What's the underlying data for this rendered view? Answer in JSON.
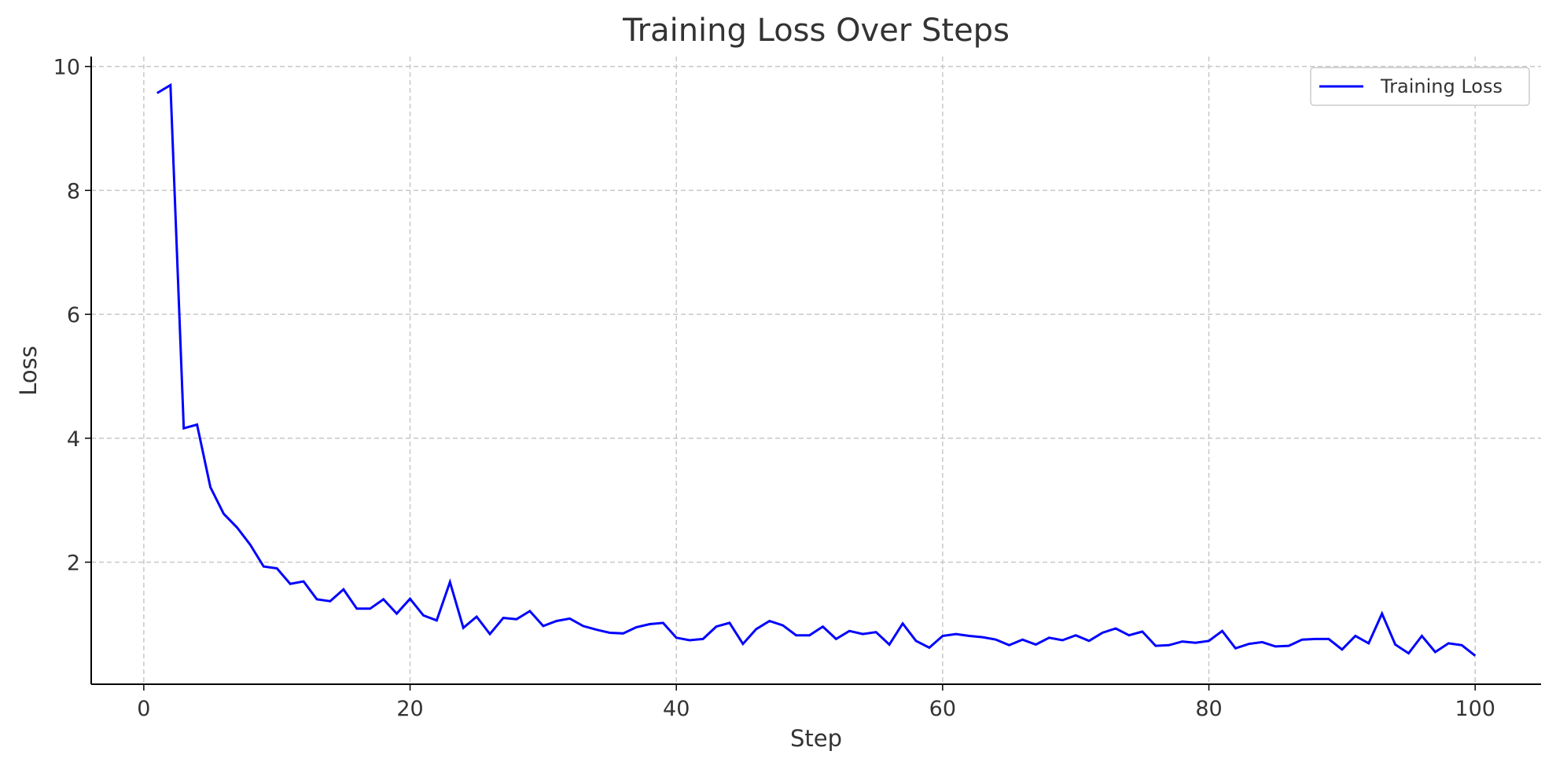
{
  "chart_data": {
    "type": "line",
    "title": "Training Loss Over Steps",
    "xlabel": "Step",
    "ylabel": "Loss",
    "xlim": [
      -3.95,
      104.95
    ],
    "ylim": [
      0.03,
      10.16
    ],
    "xticks": [
      0,
      20,
      40,
      60,
      80,
      100
    ],
    "yticks": [
      2,
      4,
      6,
      8,
      10
    ],
    "grid": true,
    "legend_position": "top-right",
    "series": [
      {
        "name": "Training Loss",
        "color": "#0000ff",
        "x": [
          1,
          2,
          3,
          4,
          5,
          6,
          7,
          8,
          9,
          10,
          11,
          12,
          13,
          14,
          15,
          16,
          17,
          18,
          19,
          20,
          21,
          22,
          23,
          24,
          25,
          26,
          27,
          28,
          29,
          30,
          31,
          32,
          33,
          34,
          35,
          36,
          37,
          38,
          39,
          40,
          41,
          42,
          43,
          44,
          45,
          46,
          47,
          48,
          49,
          50,
          51,
          52,
          53,
          54,
          55,
          56,
          57,
          58,
          59,
          60,
          61,
          62,
          63,
          64,
          65,
          66,
          67,
          68,
          69,
          70,
          71,
          72,
          73,
          74,
          75,
          76,
          77,
          78,
          79,
          80,
          81,
          82,
          83,
          84,
          85,
          86,
          87,
          88,
          89,
          90,
          91,
          92,
          93,
          94,
          95,
          96,
          97,
          98,
          99,
          100
        ],
        "y": [
          9.57,
          9.7,
          4.16,
          4.22,
          3.21,
          2.78,
          2.56,
          2.28,
          1.93,
          1.9,
          1.65,
          1.69,
          1.4,
          1.37,
          1.56,
          1.25,
          1.25,
          1.4,
          1.17,
          1.41,
          1.14,
          1.06,
          1.68,
          0.94,
          1.12,
          0.84,
          1.1,
          1.08,
          1.21,
          0.97,
          1.05,
          1.09,
          0.97,
          0.91,
          0.86,
          0.85,
          0.95,
          1.0,
          1.02,
          0.78,
          0.74,
          0.76,
          0.96,
          1.02,
          0.68,
          0.92,
          1.05,
          0.98,
          0.82,
          0.82,
          0.96,
          0.76,
          0.89,
          0.84,
          0.87,
          0.67,
          1.01,
          0.73,
          0.62,
          0.81,
          0.84,
          0.81,
          0.79,
          0.75,
          0.66,
          0.75,
          0.67,
          0.78,
          0.74,
          0.82,
          0.73,
          0.86,
          0.93,
          0.82,
          0.88,
          0.65,
          0.66,
          0.72,
          0.7,
          0.73,
          0.89,
          0.61,
          0.68,
          0.71,
          0.64,
          0.65,
          0.75,
          0.76,
          0.76,
          0.59,
          0.81,
          0.69,
          1.17,
          0.67,
          0.53,
          0.81,
          0.55,
          0.69,
          0.66,
          0.49
        ]
      }
    ]
  }
}
